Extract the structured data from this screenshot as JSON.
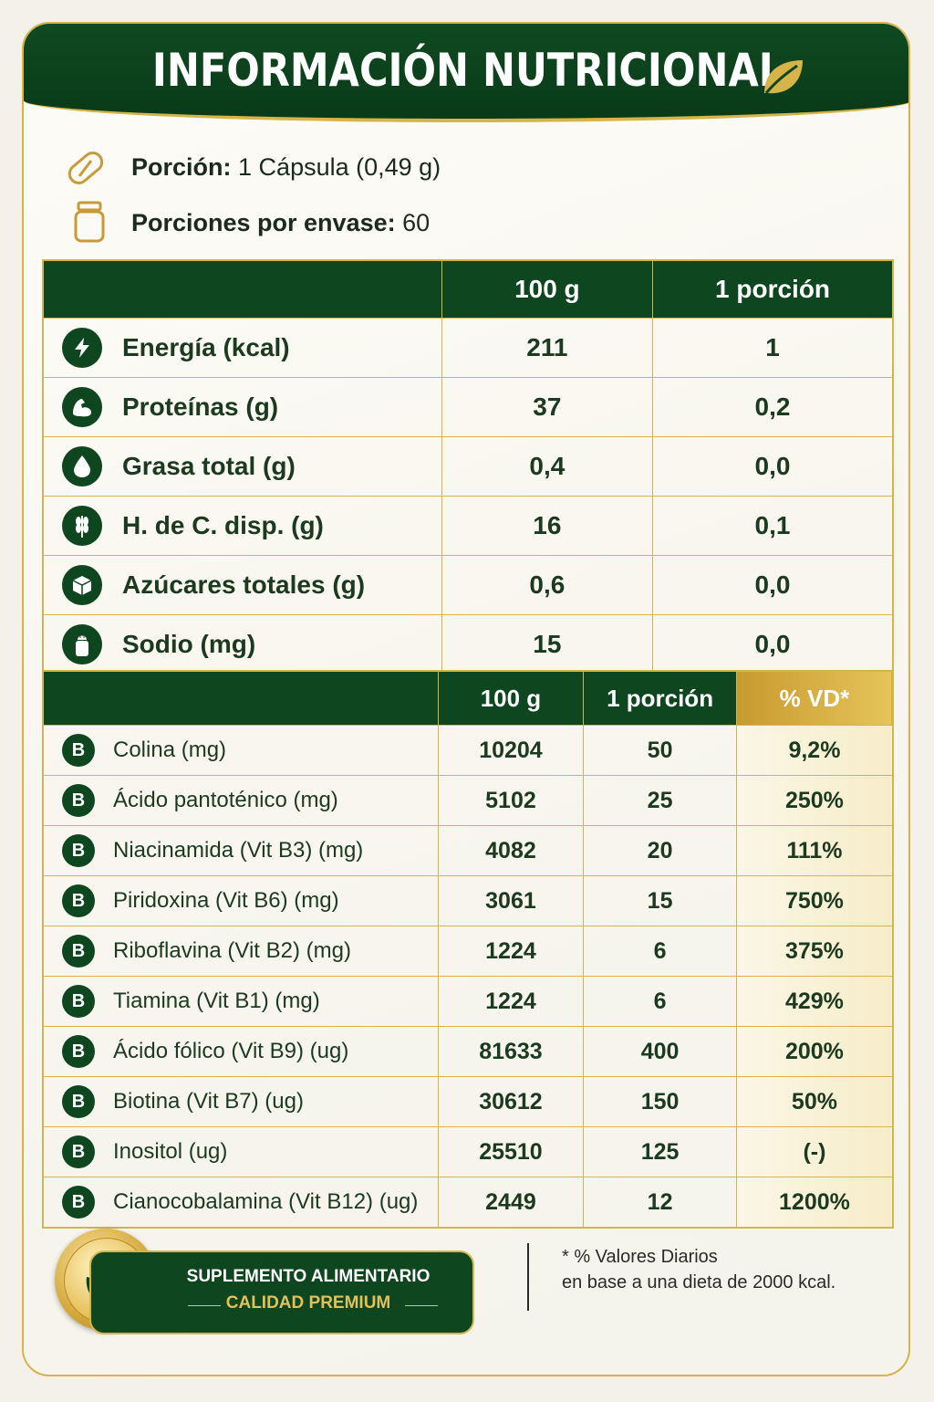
{
  "header": {
    "title": "INFORMACIÓN NUTRICIONAL",
    "icon": "leaf-icon"
  },
  "serving": {
    "portion_label": "Porción:",
    "portion_value": "1 Cápsula (0,49 g)",
    "per_pack_label": "Porciones por envase:",
    "per_pack_value": "60"
  },
  "table1": {
    "headers": [
      "",
      "100 g",
      "1 porción"
    ],
    "rows": [
      {
        "icon": "lightning-icon",
        "label": "Energía (kcal)",
        "per100": "211",
        "portion": "1"
      },
      {
        "icon": "muscle-icon",
        "label": "Proteínas (g)",
        "per100": "37",
        "portion": "0,2"
      },
      {
        "icon": "drop-icon",
        "label": "Grasa total (g)",
        "per100": "0,4",
        "portion": "0,0"
      },
      {
        "icon": "wheat-icon",
        "label": "H. de C. disp. (g)",
        "per100": "16",
        "portion": "0,1"
      },
      {
        "icon": "sugar-cube-icon",
        "label": "Azúcares totales (g)",
        "per100": "0,6",
        "portion": "0,0"
      },
      {
        "icon": "salt-shaker-icon",
        "label": "Sodio (mg)",
        "per100": "15",
        "portion": "0,0"
      }
    ]
  },
  "table2": {
    "headers": [
      "",
      "100 g",
      "1 porción",
      "% VD*"
    ],
    "icon_letter": "B",
    "rows": [
      {
        "label": "Colina (mg)",
        "per100": "10204",
        "portion": "50",
        "vd": "9,2%"
      },
      {
        "label": "Ácido pantoténico (mg)",
        "per100": "5102",
        "portion": "25",
        "vd": "250%"
      },
      {
        "label": "Niacinamida (Vit B3) (mg)",
        "per100": "4082",
        "portion": "20",
        "vd": "111%"
      },
      {
        "label": "Piridoxina (Vit B6) (mg)",
        "per100": "3061",
        "portion": "15",
        "vd": "750%"
      },
      {
        "label": "Riboflavina (Vit B2) (mg)",
        "per100": "1224",
        "portion": "6",
        "vd": "375%"
      },
      {
        "label": "Tiamina (Vit B1) (mg)",
        "per100": "1224",
        "portion": "6",
        "vd": "429%"
      },
      {
        "label": "Ácido fólico (Vit B9) (ug)",
        "per100": "81633",
        "portion": "400",
        "vd": "200%"
      },
      {
        "label": "Biotina (Vit B7) (ug)",
        "per100": "30612",
        "portion": "150",
        "vd": "50%"
      },
      {
        "label": "Inositol (ug)",
        "per100": "25510",
        "portion": "125",
        "vd": "(-)"
      },
      {
        "label": "Cianocobalamina (Vit B12) (ug)",
        "per100": "2449",
        "portion": "12",
        "vd": "1200%"
      }
    ]
  },
  "footer": {
    "badge_line1": "SUPLEMENTO ALIMENTARIO",
    "badge_line2": "CALIDAD PREMIUM",
    "note_line1": "* % Valores Diarios",
    "note_line2": "en base a una dieta de 2000 kcal."
  },
  "colors": {
    "green": "#0e4620",
    "gold": "#d6b44a"
  }
}
